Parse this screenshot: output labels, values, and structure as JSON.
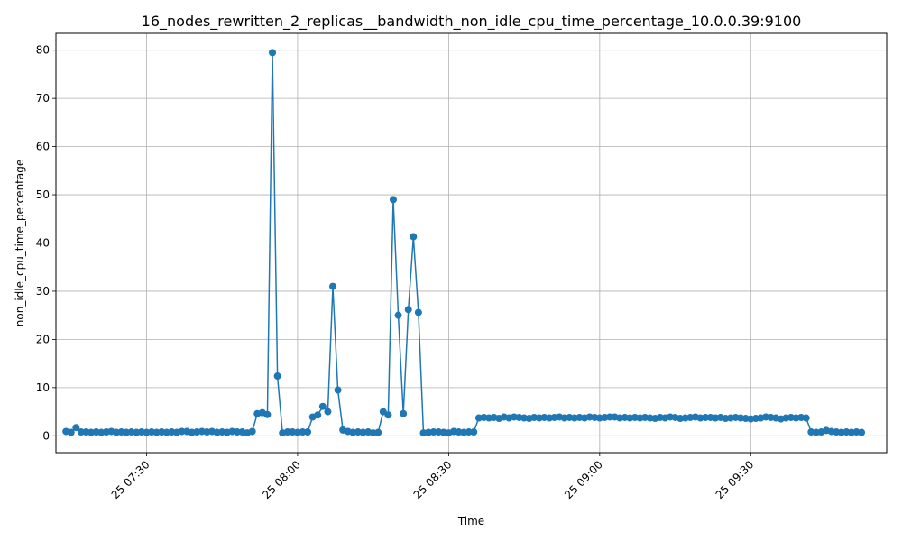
{
  "chart_data": {
    "type": "line",
    "title": "16_nodes_rewritten_2_replicas__bandwidth_non_idle_cpu_time_percentage_10.0.0.39:9100",
    "xlabel": "Time",
    "ylabel": "non_idle_cpu_time_percentage",
    "x_tick_labels": [
      "25 07:30",
      "25 08:00",
      "25 08:30",
      "25 09:00",
      "25 09:30"
    ],
    "x_tick_times": [
      "07:30",
      "08:00",
      "08:30",
      "09:00",
      "09:30"
    ],
    "y_ticks": [
      0,
      10,
      20,
      30,
      40,
      50,
      60,
      70,
      80
    ],
    "xlim": [
      "07:12",
      "09:57"
    ],
    "ylim": [
      -3.5,
      83.5
    ],
    "grid": true,
    "series": [
      {
        "color": "#1f77b4",
        "marker": "circle",
        "points": [
          [
            "07:14",
            0.9
          ],
          [
            "07:15",
            0.7
          ],
          [
            "07:16",
            1.7
          ],
          [
            "07:17",
            0.8
          ],
          [
            "07:18",
            0.8
          ],
          [
            "07:19",
            0.7
          ],
          [
            "07:20",
            0.8
          ],
          [
            "07:21",
            0.7
          ],
          [
            "07:22",
            0.8
          ],
          [
            "07:23",
            0.9
          ],
          [
            "07:24",
            0.7
          ],
          [
            "07:25",
            0.8
          ],
          [
            "07:26",
            0.7
          ],
          [
            "07:27",
            0.8
          ],
          [
            "07:28",
            0.7
          ],
          [
            "07:29",
            0.8
          ],
          [
            "07:30",
            0.7
          ],
          [
            "07:31",
            0.8
          ],
          [
            "07:32",
            0.7
          ],
          [
            "07:33",
            0.8
          ],
          [
            "07:34",
            0.7
          ],
          [
            "07:35",
            0.8
          ],
          [
            "07:36",
            0.7
          ],
          [
            "07:37",
            0.9
          ],
          [
            "07:38",
            0.9
          ],
          [
            "07:39",
            0.7
          ],
          [
            "07:40",
            0.8
          ],
          [
            "07:41",
            0.9
          ],
          [
            "07:42",
            0.8
          ],
          [
            "07:43",
            0.9
          ],
          [
            "07:44",
            0.7
          ],
          [
            "07:45",
            0.8
          ],
          [
            "07:46",
            0.7
          ],
          [
            "07:47",
            0.9
          ],
          [
            "07:48",
            0.8
          ],
          [
            "07:49",
            0.8
          ],
          [
            "07:50",
            0.6
          ],
          [
            "07:51",
            0.9
          ],
          [
            "07:52",
            4.6
          ],
          [
            "07:53",
            4.8
          ],
          [
            "07:54",
            4.4
          ],
          [
            "07:55",
            79.5
          ],
          [
            "07:56",
            12.4
          ],
          [
            "07:57",
            0.6
          ],
          [
            "07:58",
            0.8
          ],
          [
            "07:59",
            0.8
          ],
          [
            "08:00",
            0.7
          ],
          [
            "08:01",
            0.8
          ],
          [
            "08:02",
            0.8
          ],
          [
            "08:03",
            3.9
          ],
          [
            "08:04",
            4.3
          ],
          [
            "08:05",
            6.1
          ],
          [
            "08:06",
            5.0
          ],
          [
            "08:07",
            31.0
          ],
          [
            "08:08",
            9.5
          ],
          [
            "08:09",
            1.2
          ],
          [
            "08:10",
            0.9
          ],
          [
            "08:11",
            0.7
          ],
          [
            "08:12",
            0.8
          ],
          [
            "08:13",
            0.7
          ],
          [
            "08:14",
            0.8
          ],
          [
            "08:15",
            0.6
          ],
          [
            "08:16",
            0.7
          ],
          [
            "08:17",
            5.0
          ],
          [
            "08:18",
            4.3
          ],
          [
            "08:19",
            49.0
          ],
          [
            "08:20",
            25.0
          ],
          [
            "08:21",
            4.6
          ],
          [
            "08:22",
            26.2
          ],
          [
            "08:23",
            41.3
          ],
          [
            "08:24",
            25.6
          ],
          [
            "08:25",
            0.6
          ],
          [
            "08:26",
            0.7
          ],
          [
            "08:27",
            0.8
          ],
          [
            "08:28",
            0.8
          ],
          [
            "08:29",
            0.7
          ],
          [
            "08:30",
            0.6
          ],
          [
            "08:31",
            0.9
          ],
          [
            "08:32",
            0.8
          ],
          [
            "08:33",
            0.7
          ],
          [
            "08:34",
            0.8
          ],
          [
            "08:35",
            0.8
          ],
          [
            "08:36",
            3.7
          ],
          [
            "08:37",
            3.8
          ],
          [
            "08:38",
            3.7
          ],
          [
            "08:39",
            3.8
          ],
          [
            "08:40",
            3.6
          ],
          [
            "08:41",
            3.9
          ],
          [
            "08:42",
            3.7
          ],
          [
            "08:43",
            3.9
          ],
          [
            "08:44",
            3.8
          ],
          [
            "08:45",
            3.7
          ],
          [
            "08:46",
            3.6
          ],
          [
            "08:47",
            3.8
          ],
          [
            "08:48",
            3.7
          ],
          [
            "08:49",
            3.8
          ],
          [
            "08:50",
            3.7
          ],
          [
            "08:51",
            3.8
          ],
          [
            "08:52",
            3.9
          ],
          [
            "08:53",
            3.7
          ],
          [
            "08:54",
            3.8
          ],
          [
            "08:55",
            3.7
          ],
          [
            "08:56",
            3.8
          ],
          [
            "08:57",
            3.7
          ],
          [
            "08:58",
            3.9
          ],
          [
            "08:59",
            3.8
          ],
          [
            "09:00",
            3.7
          ],
          [
            "09:01",
            3.8
          ],
          [
            "09:02",
            3.9
          ],
          [
            "09:03",
            3.9
          ],
          [
            "09:04",
            3.7
          ],
          [
            "09:05",
            3.8
          ],
          [
            "09:06",
            3.7
          ],
          [
            "09:07",
            3.8
          ],
          [
            "09:08",
            3.7
          ],
          [
            "09:09",
            3.8
          ],
          [
            "09:10",
            3.7
          ],
          [
            "09:11",
            3.6
          ],
          [
            "09:12",
            3.8
          ],
          [
            "09:13",
            3.7
          ],
          [
            "09:14",
            3.9
          ],
          [
            "09:15",
            3.8
          ],
          [
            "09:16",
            3.6
          ],
          [
            "09:17",
            3.7
          ],
          [
            "09:18",
            3.8
          ],
          [
            "09:19",
            3.9
          ],
          [
            "09:20",
            3.7
          ],
          [
            "09:21",
            3.8
          ],
          [
            "09:22",
            3.8
          ],
          [
            "09:23",
            3.7
          ],
          [
            "09:24",
            3.8
          ],
          [
            "09:25",
            3.6
          ],
          [
            "09:26",
            3.7
          ],
          [
            "09:27",
            3.8
          ],
          [
            "09:28",
            3.7
          ],
          [
            "09:29",
            3.6
          ],
          [
            "09:30",
            3.5
          ],
          [
            "09:31",
            3.6
          ],
          [
            "09:32",
            3.7
          ],
          [
            "09:33",
            3.9
          ],
          [
            "09:34",
            3.8
          ],
          [
            "09:35",
            3.7
          ],
          [
            "09:36",
            3.5
          ],
          [
            "09:37",
            3.7
          ],
          [
            "09:38",
            3.8
          ],
          [
            "09:39",
            3.7
          ],
          [
            "09:40",
            3.8
          ],
          [
            "09:41",
            3.7
          ],
          [
            "09:42",
            0.8
          ],
          [
            "09:43",
            0.7
          ],
          [
            "09:44",
            0.8
          ],
          [
            "09:45",
            1.1
          ],
          [
            "09:46",
            0.9
          ],
          [
            "09:47",
            0.8
          ],
          [
            "09:48",
            0.7
          ],
          [
            "09:49",
            0.8
          ],
          [
            "09:50",
            0.7
          ],
          [
            "09:51",
            0.8
          ],
          [
            "09:52",
            0.7
          ]
        ]
      }
    ]
  }
}
